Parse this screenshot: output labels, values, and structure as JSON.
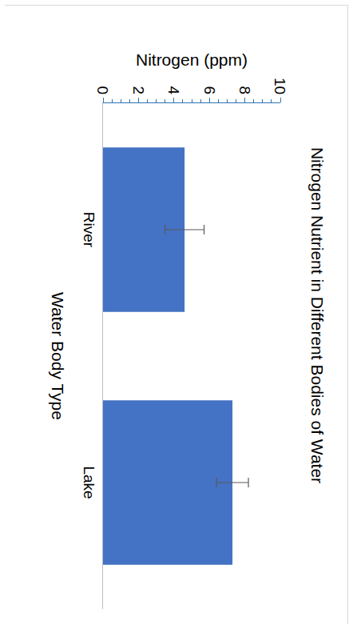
{
  "chart_data": {
    "type": "bar",
    "title": "Nitrogen Nutrient in Different Bodies of Water",
    "x_label": "Water Body Type",
    "y_label": "Nitrogen (ppm)",
    "categories": [
      "River",
      "Lake"
    ],
    "values": [
      4.6,
      7.3
    ],
    "error": [
      1.1,
      0.9
    ],
    "color": "#4472c4",
    "ylim": [
      0,
      10
    ],
    "yticks": [
      0,
      2,
      4,
      6,
      8,
      10
    ],
    "grid": false
  }
}
